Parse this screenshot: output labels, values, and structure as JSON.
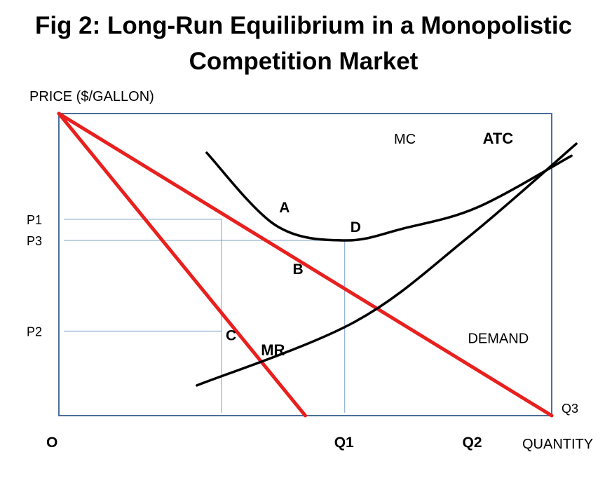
{
  "chart_data": {
    "type": "line",
    "title_lines": [
      "Fig 2: Long-Run Equilibrium in a Monopolistic",
      "Competition Market"
    ],
    "ylabel": "PRICE ($/GALLON)",
    "xlabel": "QUANTITY",
    "origin_label": "O",
    "xlim": [
      0,
      100
    ],
    "ylim": [
      0,
      100
    ],
    "x_ticks": [
      {
        "label": "Q1",
        "value": 58
      },
      {
        "label": "Q2",
        "value": 84
      },
      {
        "label": "Q3",
        "value": 100
      }
    ],
    "y_ticks": [
      {
        "label": "P1",
        "value": 65
      },
      {
        "label": "P3",
        "value": 58
      },
      {
        "label": "P2",
        "value": 28
      }
    ],
    "series": [
      {
        "name": "DEMAND",
        "color": "#e8201e",
        "points": [
          [
            0,
            100
          ],
          [
            100,
            0
          ]
        ]
      },
      {
        "name": "MR",
        "color": "#e8201e",
        "points": [
          [
            0,
            100
          ],
          [
            50,
            0
          ]
        ]
      },
      {
        "name": "MC",
        "color": "#000000",
        "points": [
          [
            28,
            10
          ],
          [
            60,
            31
          ],
          [
            83,
            59
          ],
          [
            105,
            90
          ]
        ]
      },
      {
        "name": "ATC",
        "color": "#000000",
        "points": [
          [
            30,
            87
          ],
          [
            44,
            63
          ],
          [
            58,
            58
          ],
          [
            70,
            62
          ],
          [
            85,
            69
          ],
          [
            104,
            86
          ]
        ]
      }
    ],
    "point_labels": [
      {
        "label": "A",
        "x": 43,
        "y": 65
      },
      {
        "label": "D",
        "x": 58,
        "y": 58
      },
      {
        "label": "B",
        "x": 52,
        "y": 52
      },
      {
        "label": "C",
        "x": 33,
        "y": 28
      }
    ],
    "guides": [
      {
        "x": 33,
        "y": 65
      },
      {
        "x": 58,
        "y": 58
      },
      {
        "x": 33,
        "y": 28
      }
    ],
    "grid": false,
    "frame_color": "#4a6f9a",
    "guide_color": "#7ba0c8"
  }
}
